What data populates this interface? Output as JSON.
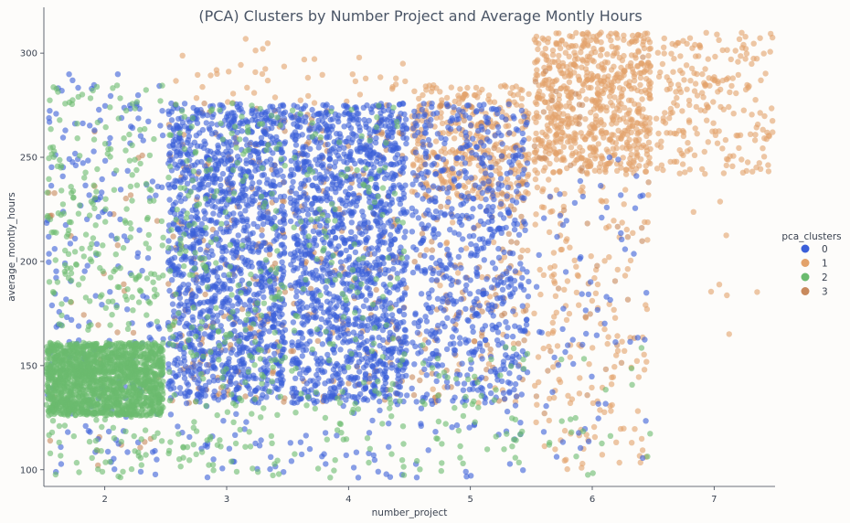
{
  "chart_data": {
    "type": "scatter",
    "title": "(PCA) Clusters by Number Project and Average Montly Hours",
    "xlabel": "number_project",
    "ylabel": "average_montly_hours",
    "xlim": [
      1.5,
      7.5
    ],
    "ylim": [
      92,
      322
    ],
    "x_ticks": [
      2,
      3,
      4,
      5,
      6,
      7
    ],
    "y_ticks": [
      100,
      150,
      200,
      250,
      300
    ],
    "jitter": 0.48,
    "grid": false,
    "legend": {
      "title": "pca_clusters",
      "placement": "right",
      "entries": [
        "0",
        "1",
        "2",
        "3"
      ]
    },
    "series": [
      {
        "name": "0",
        "color": "#3a5fd9",
        "regions": [
          {
            "x": 2,
            "y_range": [
              96,
              290
            ],
            "count": 200
          },
          {
            "x": 3,
            "y_range": [
              132,
              276
            ],
            "count": 1400
          },
          {
            "x": 3,
            "y_range": [
              96,
              132
            ],
            "count": 30
          },
          {
            "x": 4,
            "y_range": [
              132,
              276
            ],
            "count": 1400
          },
          {
            "x": 4,
            "y_range": [
              96,
              132
            ],
            "count": 30
          },
          {
            "x": 5,
            "y_range": [
              132,
              276
            ],
            "count": 650
          },
          {
            "x": 5,
            "y_range": [
              96,
              132
            ],
            "count": 25
          },
          {
            "x": 6,
            "y_range": [
              100,
              250
            ],
            "count": 70
          }
        ]
      },
      {
        "name": "1",
        "color": "#e3a26a",
        "regions": [
          {
            "x": 5,
            "y_range": [
              230,
              285
            ],
            "count": 350
          },
          {
            "x": 5,
            "y_range": [
              132,
              230
            ],
            "count": 60
          },
          {
            "x": 6,
            "y_range": [
              242,
              310
            ],
            "count": 700
          },
          {
            "x": 6,
            "y_range": [
              100,
              242
            ],
            "count": 180
          },
          {
            "x": 7,
            "y_range": [
              242,
              310
            ],
            "count": 220
          },
          {
            "x": 7,
            "y_range": [
              130,
              242
            ],
            "count": 8
          },
          {
            "x": 3,
            "y_range": [
              276,
              310
            ],
            "count": 25
          },
          {
            "x": 4,
            "y_range": [
              276,
              300
            ],
            "count": 20
          }
        ]
      },
      {
        "name": "2",
        "color": "#6abb6e",
        "regions": [
          {
            "x": 2,
            "y_range": [
              126,
              161
            ],
            "count": 1500
          },
          {
            "x": 2,
            "y_range": [
              96,
              285
            ],
            "count": 320
          },
          {
            "x": 3,
            "y_range": [
              96,
              276
            ],
            "count": 260
          },
          {
            "x": 4,
            "y_range": [
              96,
              276
            ],
            "count": 160
          },
          {
            "x": 5,
            "y_range": [
              96,
              160
            ],
            "count": 60
          },
          {
            "x": 6,
            "y_range": [
              96,
              160
            ],
            "count": 20
          }
        ]
      },
      {
        "name": "3",
        "color": "#c8895c",
        "regions": [
          {
            "x": 2,
            "y_range": [
              98,
              285
            ],
            "count": 40
          },
          {
            "x": 3,
            "y_range": [
              132,
              276
            ],
            "count": 160
          },
          {
            "x": 4,
            "y_range": [
              132,
              276
            ],
            "count": 140
          },
          {
            "x": 5,
            "y_range": [
              132,
              276
            ],
            "count": 120
          },
          {
            "x": 6,
            "y_range": [
              120,
              300
            ],
            "count": 40
          }
        ]
      }
    ]
  }
}
